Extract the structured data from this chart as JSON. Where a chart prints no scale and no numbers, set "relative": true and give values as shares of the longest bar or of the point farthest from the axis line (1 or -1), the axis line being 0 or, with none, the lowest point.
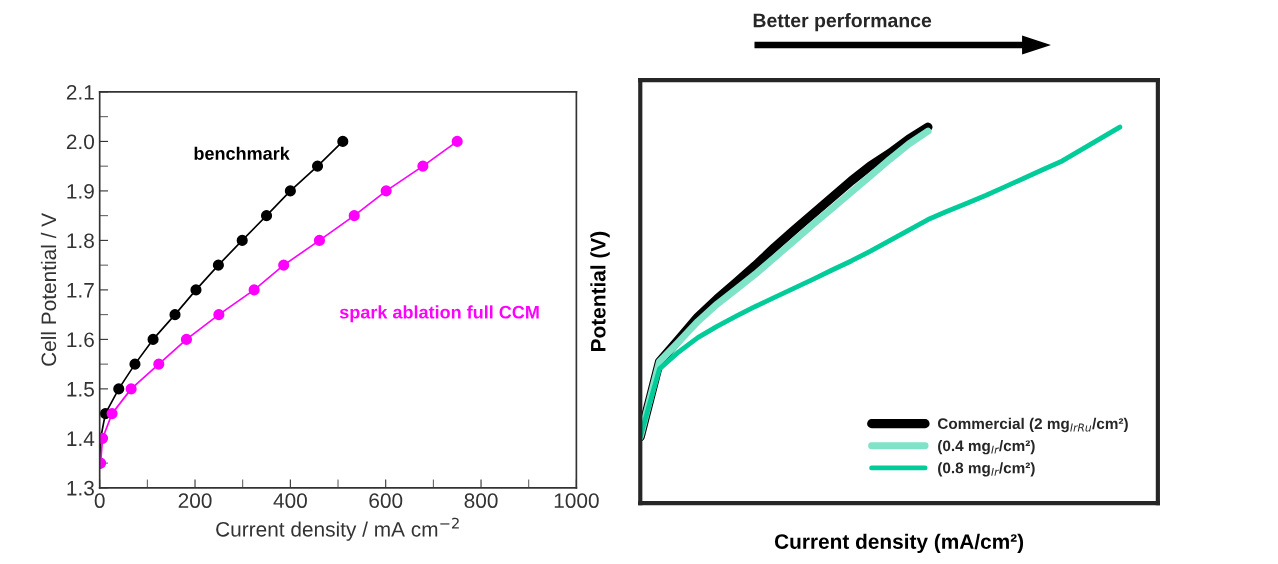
{
  "chart_data": [
    {
      "type": "line",
      "xlabel": "Current density / mA cm$^{−2}$",
      "ylabel": "Cell Potential / V",
      "xlim": [
        0,
        1000
      ],
      "xticks": [
        0,
        200,
        400,
        600,
        800,
        1000
      ],
      "ylim": [
        1.3,
        2.1
      ],
      "yticks": [
        1.3,
        1.4,
        1.5,
        1.6,
        1.7,
        1.8,
        1.9,
        {
          "value": 2.0,
          "label": "2.0"
        },
        2.1
      ],
      "marker": "circle",
      "line_style": "solid",
      "grid": false,
      "legend": false,
      "series": [
        {
          "name": "benchmark",
          "color": "#000000",
          "x": [
            0,
            2,
            12,
            40,
            74,
            112,
            158,
            202,
            249,
            299,
            350,
            400,
            457,
            510
          ],
          "values": [
            1.35,
            1.4,
            1.45,
            1.5,
            1.55,
            1.6,
            1.65,
            1.7,
            1.75,
            1.8,
            1.85,
            1.9,
            1.95,
            2.0
          ]
        },
        {
          "name": "spark ablation full CCM",
          "color": "#ff00ff",
          "x": [
            2,
            6,
            26,
            66,
            124,
            182,
            250,
            324,
            386,
            461,
            534,
            601,
            678,
            750
          ],
          "values": [
            1.35,
            1.4,
            1.45,
            1.5,
            1.55,
            1.6,
            1.65,
            1.7,
            1.75,
            1.8,
            1.85,
            1.9,
            1.95,
            2.0
          ]
        }
      ]
    },
    {
      "type": "line",
      "relative": true,
      "categories": [
        null,
        null,
        null,
        null,
        null,
        null,
        null,
        null,
        null,
        null,
        null,
        null,
        null,
        null,
        null,
        null,
        null,
        null,
        null,
        null,
        null,
        null,
        null,
        null,
        null,
        null
      ],
      "xlabel": "Current density (mA/cm²)",
      "ylabel": "Potential (V)",
      "annotations": [
        "Better performance"
      ],
      "legend": "bottom right",
      "marker": "none",
      "line_style": "solid",
      "grid": false,
      "series": [
        {
          "name": "Commercial (2 mg$_{IrRu}$/cm²)",
          "color": "#000000",
          "values": [
            0.176,
            0.376,
            0.435,
            0.495,
            0.543,
            0.587,
            0.632,
            0.68,
            0.725,
            0.769,
            0.813,
            0.857,
            0.897,
            0.93,
            0.968,
            1.0,
            null,
            null,
            null,
            null,
            null,
            null,
            null,
            null,
            null,
            null
          ]
        },
        {
          "name": "(0.4 mg$_{Ir}$/cm²)",
          "color": "#7fe3c8",
          "values": [
            0.176,
            0.376,
            0.429,
            0.483,
            0.529,
            0.569,
            0.609,
            0.653,
            0.697,
            0.741,
            0.784,
            0.827,
            0.87,
            0.914,
            0.955,
            0.989,
            null,
            null,
            null,
            null,
            null,
            null,
            null,
            null,
            null,
            null
          ]
        },
        {
          "name": "(0.8 mg$_{Ir}$/cm²)",
          "color": "#00cc99",
          "values": [
            0.176,
            0.357,
            0.402,
            0.44,
            0.47,
            0.497,
            0.523,
            0.547,
            0.571,
            0.595,
            0.62,
            0.644,
            0.67,
            0.698,
            0.726,
            0.754,
            0.776,
            0.797,
            0.818,
            0.841,
            0.864,
            0.887,
            0.91,
            0.94,
            0.97,
            1.0
          ]
        }
      ]
    }
  ]
}
